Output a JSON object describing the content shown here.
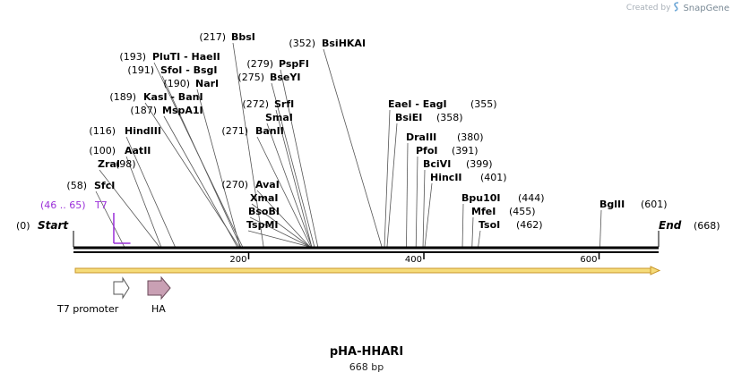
{
  "credit": {
    "label": "Created by",
    "brand": "SnapGene"
  },
  "plasmid": {
    "name": "pHA-HHARI",
    "length_label": "668 bp",
    "length": 668
  },
  "ends": {
    "start": {
      "label": "Start",
      "pos_label": "(0)"
    },
    "end": {
      "label": "End",
      "pos_label": "(668)"
    }
  },
  "colors": {
    "primer": "#9b30d9",
    "arrow_fill": "#f6dc7a",
    "arrow_stroke": "#c8962a",
    "ha_fill": "#c9a0b4"
  },
  "enzymes": [
    {
      "pos": 58,
      "pos_label": "(58)",
      "names": [
        "SfcI"
      ]
    },
    {
      "pos": 98,
      "pos_label": "(98)",
      "names": [
        "ZraI"
      ]
    },
    {
      "pos": 100,
      "pos_label": "(100)",
      "names": [
        "AatII"
      ]
    },
    {
      "pos": 116,
      "pos_label": "(116)",
      "names": [
        "HindIII"
      ]
    },
    {
      "pos": 187,
      "pos_label": "(187)",
      "names": [
        "MspA1I"
      ]
    },
    {
      "pos": 189,
      "pos_label": "(189)",
      "names": [
        "KasI",
        "BanI"
      ]
    },
    {
      "pos": 190,
      "pos_label": "(190)",
      "names": [
        "NarI"
      ]
    },
    {
      "pos": 191,
      "pos_label": "(191)",
      "names": [
        "SfoI",
        "BsgI"
      ]
    },
    {
      "pos": 193,
      "pos_label": "(193)",
      "names": [
        "PluTI",
        "HaeII"
      ]
    },
    {
      "pos": 217,
      "pos_label": "(217)",
      "names": [
        "BbsI"
      ]
    },
    {
      "pos": 270,
      "pos_label": "(270)",
      "names": [
        "AvaI"
      ]
    },
    {
      "pos": 270,
      "pos_label": "",
      "names": [
        "XmaI"
      ]
    },
    {
      "pos": 270,
      "pos_label": "",
      "names": [
        "BsoBI"
      ]
    },
    {
      "pos": 270,
      "pos_label": "",
      "names": [
        "TspMI"
      ]
    },
    {
      "pos": 271,
      "pos_label": "(271)",
      "names": [
        "BanII"
      ]
    },
    {
      "pos": 272,
      "pos_label": "(272)",
      "names": [
        "SrfI"
      ]
    },
    {
      "pos": 272,
      "pos_label": "",
      "names": [
        "SmaI"
      ]
    },
    {
      "pos": 275,
      "pos_label": "(275)",
      "names": [
        "BseYI"
      ]
    },
    {
      "pos": 279,
      "pos_label": "(279)",
      "names": [
        "PspFI"
      ]
    },
    {
      "pos": 352,
      "pos_label": "(352)",
      "names": [
        "BsiHKAI"
      ]
    },
    {
      "pos": 355,
      "pos_label": "(355)",
      "names": [
        "EaeI",
        "EagI"
      ]
    },
    {
      "pos": 358,
      "pos_label": "(358)",
      "names": [
        "BsiEI"
      ]
    },
    {
      "pos": 380,
      "pos_label": "(380)",
      "names": [
        "DraIII"
      ]
    },
    {
      "pos": 391,
      "pos_label": "(391)",
      "names": [
        "PfoI"
      ]
    },
    {
      "pos": 399,
      "pos_label": "(399)",
      "names": [
        "BciVI"
      ]
    },
    {
      "pos": 401,
      "pos_label": "(401)",
      "names": [
        "HincII"
      ]
    },
    {
      "pos": 444,
      "pos_label": "(444)",
      "names": [
        "Bpu10I"
      ]
    },
    {
      "pos": 455,
      "pos_label": "(455)",
      "names": [
        "MfeI"
      ]
    },
    {
      "pos": 462,
      "pos_label": "(462)",
      "names": [
        "TsoI"
      ]
    },
    {
      "pos": 601,
      "pos_label": "(601)",
      "names": [
        "BglII"
      ]
    }
  ],
  "primer": {
    "name": "T7",
    "range_label": "(46 .. 65)",
    "start": 46,
    "end": 65
  },
  "ruler": {
    "ticks": [
      200,
      400,
      600
    ]
  },
  "features": [
    {
      "name": "T7 promoter",
      "type": "promoter"
    },
    {
      "name": "HA",
      "type": "tag"
    }
  ]
}
